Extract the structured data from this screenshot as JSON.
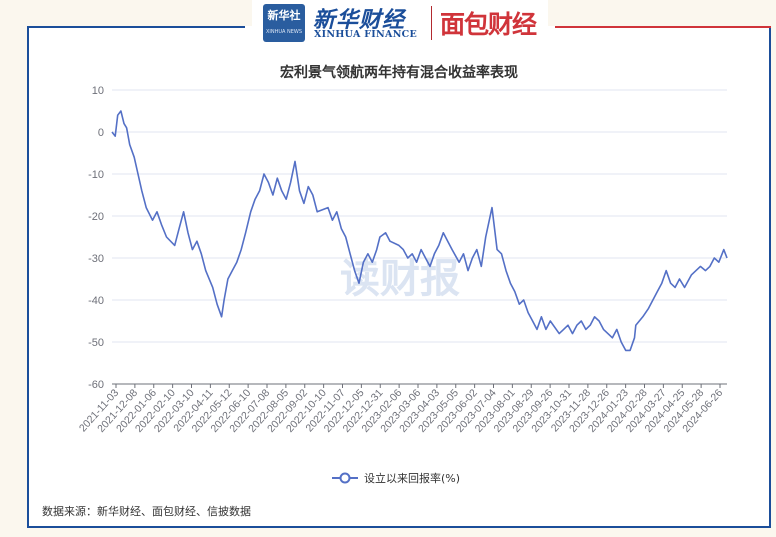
{
  "header": {
    "xinhua_seal_cn": "新华社",
    "xinhua_seal_en": "XINHUA NEWS",
    "xinhua_cn": "新华财经",
    "xinhua_en": "XINHUA FINANCE",
    "mianbao": "面包财经"
  },
  "watermark": "读财报",
  "source": "数据来源：新华财经、面包财经、信披数据",
  "colors": {
    "frame_blue": "#1b4e9a",
    "frame_red": "#d0343a",
    "series": "#5470c6"
  },
  "chart_data": {
    "type": "line",
    "title": "宏利景气领航两年持有混合收益率表现",
    "ylim": [
      -60,
      10
    ],
    "yticks": [
      10,
      0,
      -10,
      -20,
      -30,
      -40,
      -50,
      -60
    ],
    "grid": true,
    "legend_position": "bottom-center",
    "x_tick_labels": [
      "2021-11-03",
      "2021-12-08",
      "2022-01-06",
      "2022-02-10",
      "2022-03-10",
      "2022-04-11",
      "2022-05-12",
      "2022-06-10",
      "2022-07-08",
      "2022-08-05",
      "2022-09-02",
      "2022-10-10",
      "2022-11-07",
      "2022-12-05",
      "2022-12-31",
      "2023-02-06",
      "2023-03-06",
      "2023-04-03",
      "2023-05-05",
      "2023-06-02",
      "2023-07-04",
      "2023-08-01",
      "2023-08-29",
      "2023-09-26",
      "2023-10-31",
      "2023-11-28",
      "2023-12-26",
      "2024-01-23",
      "2024-02-28",
      "2024-03-27",
      "2024-04-25",
      "2024-05-28",
      "2024-06-26"
    ],
    "series": [
      {
        "name": "设立以来回报率(%)",
        "x": [
          "2021-11-03",
          "2021-11-08",
          "2021-11-12",
          "2021-11-17",
          "2021-11-22",
          "2021-11-26",
          "2021-12-01",
          "2021-12-08",
          "2021-12-14",
          "2021-12-20",
          "2021-12-27",
          "2022-01-06",
          "2022-01-13",
          "2022-01-20",
          "2022-01-28",
          "2022-02-10",
          "2022-02-17",
          "2022-02-24",
          "2022-03-03",
          "2022-03-10",
          "2022-03-17",
          "2022-03-24",
          "2022-03-31",
          "2022-04-11",
          "2022-04-18",
          "2022-04-25",
          "2022-04-29",
          "2022-05-05",
          "2022-05-12",
          "2022-05-19",
          "2022-05-26",
          "2022-06-02",
          "2022-06-10",
          "2022-06-17",
          "2022-06-24",
          "2022-07-01",
          "2022-07-08",
          "2022-07-15",
          "2022-07-22",
          "2022-07-29",
          "2022-08-05",
          "2022-08-12",
          "2022-08-19",
          "2022-08-26",
          "2022-09-02",
          "2022-09-09",
          "2022-09-16",
          "2022-09-23",
          "2022-10-10",
          "2022-10-17",
          "2022-10-24",
          "2022-10-31",
          "2022-11-07",
          "2022-11-14",
          "2022-11-21",
          "2022-11-28",
          "2022-12-05",
          "2022-12-12",
          "2022-12-19",
          "2022-12-26",
          "2022-12-31",
          "2023-01-09",
          "2023-01-16",
          "2023-01-30",
          "2023-02-06",
          "2023-02-13",
          "2023-02-20",
          "2023-02-27",
          "2023-03-06",
          "2023-03-13",
          "2023-03-20",
          "2023-03-27",
          "2023-04-03",
          "2023-04-10",
          "2023-04-17",
          "2023-04-24",
          "2023-05-05",
          "2023-05-12",
          "2023-05-19",
          "2023-05-26",
          "2023-06-02",
          "2023-06-09",
          "2023-06-16",
          "2023-06-26",
          "2023-07-04",
          "2023-07-11",
          "2023-07-18",
          "2023-07-25",
          "2023-08-01",
          "2023-08-08",
          "2023-08-15",
          "2023-08-22",
          "2023-08-29",
          "2023-09-05",
          "2023-09-12",
          "2023-09-19",
          "2023-09-26",
          "2023-10-10",
          "2023-10-17",
          "2023-10-24",
          "2023-10-31",
          "2023-11-07",
          "2023-11-14",
          "2023-11-21",
          "2023-11-28",
          "2023-12-05",
          "2023-12-12",
          "2023-12-19",
          "2023-12-26",
          "2024-01-02",
          "2024-01-09",
          "2024-01-16",
          "2024-01-23",
          "2024-01-30",
          "2024-02-06",
          "2024-02-08",
          "2024-02-19",
          "2024-02-28",
          "2024-03-06",
          "2024-03-13",
          "2024-03-20",
          "2024-03-27",
          "2024-04-03",
          "2024-04-10",
          "2024-04-17",
          "2024-04-25",
          "2024-05-06",
          "2024-05-13",
          "2024-05-20",
          "2024-05-28",
          "2024-06-04",
          "2024-06-11",
          "2024-06-18",
          "2024-06-26",
          "2024-07-01"
        ],
        "values": [
          0,
          -1,
          4,
          5,
          2,
          1,
          -3,
          -6,
          -10,
          -14,
          -18,
          -21,
          -19,
          -22,
          -25,
          -27,
          -23,
          -19,
          -24,
          -28,
          -26,
          -29,
          -33,
          -37,
          -41,
          -44,
          -40,
          -35,
          -33,
          -31,
          -28,
          -24,
          -19,
          -16,
          -14,
          -10,
          -12,
          -15,
          -11,
          -14,
          -16,
          -12,
          -7,
          -14,
          -17,
          -13,
          -15,
          -19,
          -18,
          -21,
          -19,
          -23,
          -25,
          -29,
          -33,
          -36,
          -31,
          -29,
          -31,
          -28,
          -25,
          -24,
          -26,
          -27,
          -28,
          -30,
          -29,
          -31,
          -28,
          -30,
          -32,
          -29,
          -27,
          -24,
          -26,
          -28,
          -31,
          -29,
          -33,
          -30,
          -28,
          -32,
          -25,
          -18,
          -28,
          -29,
          -33,
          -36,
          -38,
          -41,
          -40,
          -43,
          -45,
          -47,
          -44,
          -47,
          -45,
          -48,
          -47,
          -46,
          -48,
          -46,
          -45,
          -47,
          -46,
          -44,
          -45,
          -47,
          -48,
          -49,
          -47,
          -50,
          -52,
          -52,
          -49,
          -46,
          -44,
          -42,
          -40,
          -38,
          -36,
          -33,
          -36,
          -37,
          -35,
          -37,
          -34,
          -33,
          -32,
          -33,
          -32,
          -30,
          -31,
          -28,
          -30
        ]
      }
    ]
  }
}
